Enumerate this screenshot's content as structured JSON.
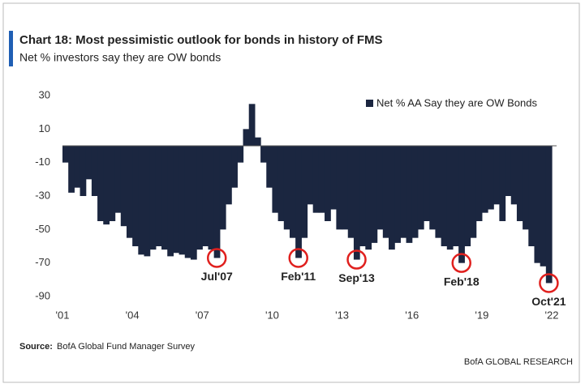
{
  "chart_data": {
    "type": "bar",
    "title": "Chart 18: Most pessimistic outlook for bonds in history of FMS",
    "subtitle": "Net % investors say they are OW bonds",
    "source_label": "Source:",
    "source": "BofA Global Fund Manager Survey",
    "footer": "BofA GLOBAL RESEARCH",
    "x": [
      2001,
      2001.25,
      2001.5,
      2001.75,
      2002,
      2002.25,
      2002.5,
      2002.75,
      2003,
      2003.25,
      2003.5,
      2003.75,
      2004,
      2004.25,
      2004.5,
      2004.75,
      2005,
      2005.25,
      2005.5,
      2005.75,
      2006,
      2006.25,
      2006.5,
      2006.75,
      2007,
      2007.25,
      2007.5,
      2007.75,
      2008,
      2008.25,
      2008.5,
      2008.75,
      2009,
      2009.25,
      2009.5,
      2009.75,
      2010,
      2010.25,
      2010.5,
      2010.75,
      2011,
      2011.25,
      2011.5,
      2011.75,
      2012,
      2012.25,
      2012.5,
      2012.75,
      2013,
      2013.25,
      2013.5,
      2013.75,
      2014,
      2014.25,
      2014.5,
      2014.75,
      2015,
      2015.25,
      2015.5,
      2015.75,
      2016,
      2016.25,
      2016.5,
      2016.75,
      2017,
      2017.25,
      2017.5,
      2017.75,
      2018,
      2018.25,
      2018.5,
      2018.75,
      2019,
      2019.25,
      2019.5,
      2019.75,
      2020,
      2020.25,
      2020.5,
      2020.75,
      2021,
      2021.25,
      2021.5,
      2021.75
    ],
    "series": [
      {
        "name": "Net % AA Say they are OW Bonds",
        "color": "#1b2640",
        "values": [
          -10,
          -28,
          -25,
          -30,
          -20,
          -30,
          -45,
          -47,
          -45,
          -40,
          -48,
          -55,
          -60,
          -65,
          -66,
          -62,
          -60,
          -62,
          -66,
          -64,
          -65,
          -67,
          -68,
          -62,
          -60,
          -62,
          -67,
          -50,
          -35,
          -25,
          -10,
          10,
          25,
          5,
          -10,
          -25,
          -40,
          -45,
          -50,
          -55,
          -67,
          -55,
          -35,
          -40,
          -40,
          -45,
          -38,
          -50,
          -50,
          -55,
          -68,
          -60,
          -62,
          -58,
          -50,
          -55,
          -62,
          -58,
          -55,
          -58,
          -55,
          -50,
          -45,
          -50,
          -55,
          -60,
          -62,
          -60,
          -70,
          -60,
          -55,
          -45,
          -40,
          -38,
          -35,
          -45,
          -30,
          -35,
          -45,
          -50,
          -60,
          -70,
          -72,
          -82
        ]
      }
    ],
    "annotations": [
      {
        "text": "Jul'07",
        "x": 2007.5,
        "y": -67
      },
      {
        "text": "Feb'11",
        "x": 2011,
        "y": -67
      },
      {
        "text": "Sep'13",
        "x": 2013.5,
        "y": -68
      },
      {
        "text": "Feb'18",
        "x": 2018,
        "y": -70
      },
      {
        "text": "Oct'21",
        "x": 2021.75,
        "y": -82
      }
    ],
    "xlim": [
      2001,
      2022
    ],
    "xticks": [
      {
        "value": 2001,
        "label": "'01"
      },
      {
        "value": 2004,
        "label": "'04"
      },
      {
        "value": 2007,
        "label": "'07"
      },
      {
        "value": 2010,
        "label": "'10"
      },
      {
        "value": 2013,
        "label": "'13"
      },
      {
        "value": 2016,
        "label": "'16"
      },
      {
        "value": 2019,
        "label": "'19"
      },
      {
        "value": 2022,
        "label": "'22"
      }
    ],
    "ylim": [
      -90,
      30
    ],
    "yticks": [
      30,
      10,
      -10,
      -30,
      -50,
      -70,
      -90
    ],
    "annotation_color": "#e0201e"
  }
}
